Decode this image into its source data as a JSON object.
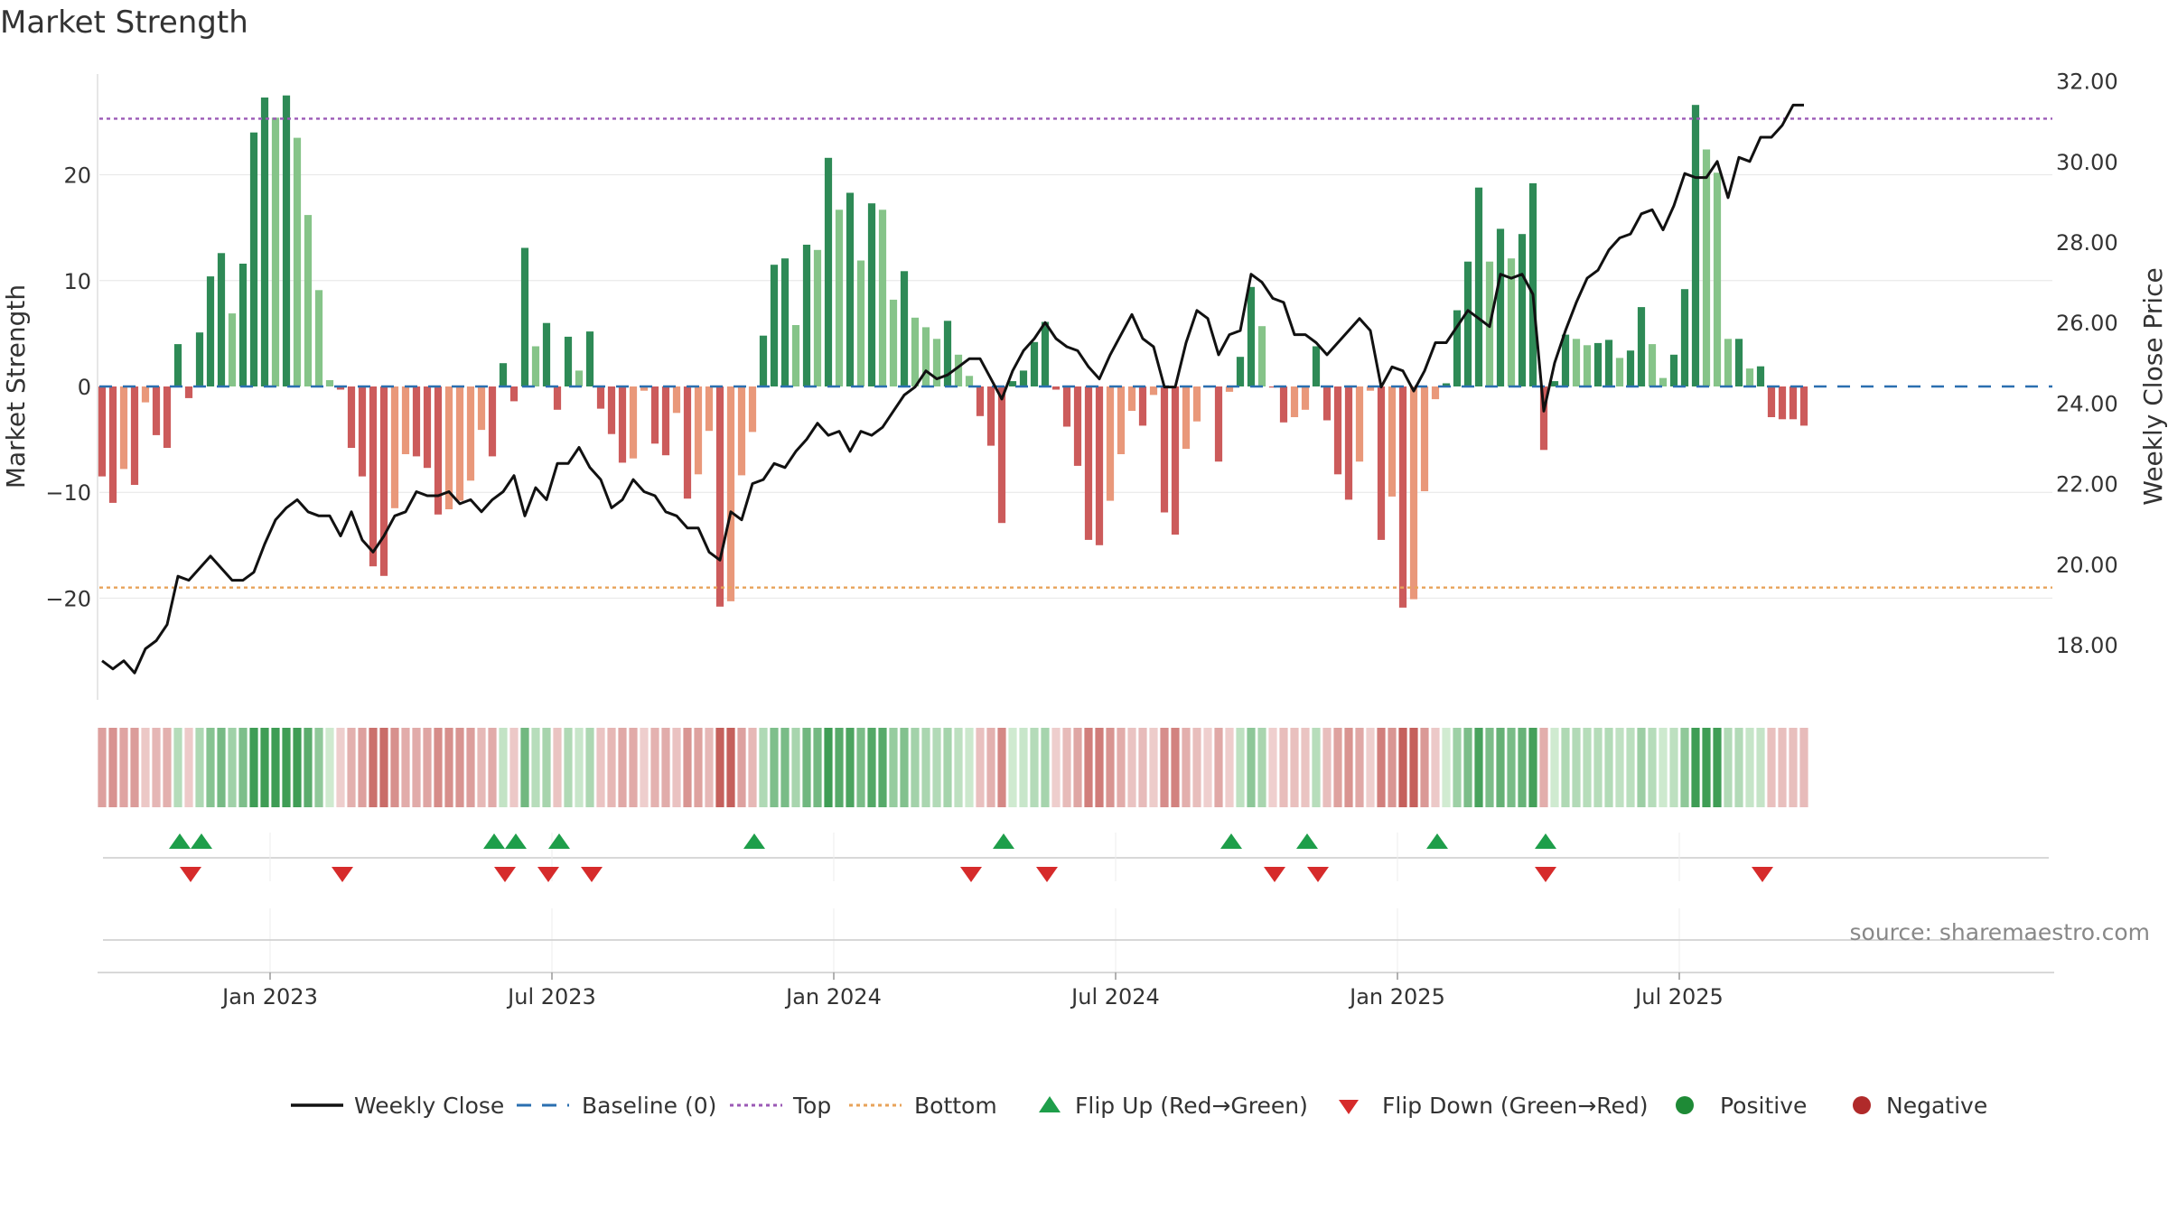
{
  "chart_data": {
    "type": "bar",
    "title": "Market Strength",
    "ylabel_left": "Market Strength",
    "ylabel_right": "Weekly Close Price",
    "ylim_left": [
      -29,
      30
    ],
    "ylim_right": [
      16.5,
      32.5
    ],
    "left_ticks": [
      {
        "value": 20,
        "label": "20"
      },
      {
        "value": 10,
        "label": "10"
      },
      {
        "value": 0,
        "label": "0"
      },
      {
        "value": -10,
        "label": "−10"
      },
      {
        "value": -20,
        "label": "−20"
      }
    ],
    "right_ticks": [
      "18.00",
      "20.00",
      "22.00",
      "24.00",
      "26.00",
      "28.00",
      "30.00",
      "32.00"
    ],
    "top_level": 25.3,
    "bottom_level": -19.0,
    "x_ticks": [
      {
        "index": 15,
        "label": "Jan 2023"
      },
      {
        "index": 41,
        "label": "Jul 2023"
      },
      {
        "index": 67,
        "label": "Jan 2024"
      },
      {
        "index": 93,
        "label": "Jul 2024"
      },
      {
        "index": 119,
        "label": "Jan 2025"
      },
      {
        "index": 145,
        "label": "Jul 2025"
      }
    ],
    "strength": [
      -8.5,
      -11,
      -7.8,
      -9.3,
      -1.5,
      -4.6,
      -5.8,
      4,
      -1.1,
      5.1,
      10.4,
      12.6,
      6.9,
      11.6,
      24,
      27.3,
      25.4,
      27.5,
      23.5,
      16.2,
      9.1,
      0.6,
      -0.3,
      -5.8,
      -8.5,
      -17,
      -17.9,
      -11.5,
      -6.4,
      -6.6,
      -7.7,
      -12.1,
      -11.6,
      -10.8,
      -8.9,
      -4.1,
      -6.6,
      2.2,
      -1.4,
      13.1,
      3.8,
      6,
      -2.2,
      4.7,
      1.5,
      5.2,
      -2.1,
      -4.5,
      -7.2,
      -6.8,
      -0.4,
      -5.4,
      -6.5,
      -2.5,
      -10.6,
      -8.3,
      -4.2,
      -20.8,
      -20.3,
      -8.4,
      -4.3,
      4.8,
      11.5,
      12.1,
      5.8,
      13.4,
      12.9,
      21.6,
      16.7,
      18.3,
      11.9,
      17.3,
      16.7,
      8.2,
      10.9,
      6.5,
      5.6,
      4.5,
      6.2,
      3,
      1,
      -2.8,
      -5.6,
      -12.9,
      0.5,
      1.5,
      4.2,
      6.1,
      -0.3,
      -3.8,
      -7.5,
      -14.5,
      -15,
      -10.8,
      -6.4,
      -2.3,
      -3.7,
      -0.8,
      -11.9,
      -14,
      -5.9,
      -3.3,
      -0.1,
      -7.1,
      -0.5,
      2.8,
      9.4,
      5.7,
      -0.1,
      -3.4,
      -2.9,
      -2.2,
      3.8,
      -3.2,
      -8.3,
      -10.7,
      -7.1,
      -0.4,
      -14.5,
      -10.4,
      -20.9,
      -20.1,
      -9.9,
      -1.2,
      0.3,
      7.2,
      11.8,
      18.8,
      11.8,
      14.9,
      12.1,
      14.4,
      19.2,
      -6,
      0.5,
      4.9,
      4.5,
      3.9,
      4.1,
      4.4,
      2.7,
      3.4,
      7.5,
      4,
      0.8,
      3,
      9.2,
      26.6,
      22.4,
      20.2,
      4.5,
      4.5,
      1.7,
      1.9,
      -2.9,
      -3.1,
      -3.1,
      -3.7
    ],
    "weekly_close": [
      17.6,
      17.4,
      17.6,
      17.3,
      17.9,
      18.1,
      18.5,
      19.7,
      19.6,
      19.9,
      20.2,
      19.9,
      19.6,
      19.6,
      19.8,
      20.5,
      21.1,
      21.4,
      21.6,
      21.3,
      21.2,
      21.2,
      20.7,
      21.3,
      20.6,
      20.3,
      20.7,
      21.2,
      21.3,
      21.8,
      21.7,
      21.7,
      21.8,
      21.5,
      21.6,
      21.3,
      21.6,
      21.8,
      22.2,
      21.2,
      21.9,
      21.6,
      22.5,
      22.5,
      22.9,
      22.4,
      22.1,
      21.4,
      21.6,
      22.1,
      21.8,
      21.7,
      21.3,
      21.2,
      20.9,
      20.9,
      20.3,
      20.1,
      21.3,
      21.1,
      22,
      22.1,
      22.5,
      22.4,
      22.8,
      23.1,
      23.5,
      23.2,
      23.3,
      22.8,
      23.3,
      23.2,
      23.4,
      23.8,
      24.2,
      24.4,
      24.8,
      24.6,
      24.7,
      24.9,
      25.1,
      25.1,
      24.6,
      24.1,
      24.8,
      25.3,
      25.6,
      26,
      25.6,
      25.4,
      25.3,
      24.9,
      24.6,
      25.2,
      25.7,
      26.2,
      25.6,
      25.4,
      24.4,
      24.4,
      25.5,
      26.3,
      26.1,
      25.2,
      25.7,
      25.8,
      27.2,
      27,
      26.6,
      26.5,
      25.7,
      25.7,
      25.5,
      25.2,
      25.5,
      25.8,
      26.1,
      25.8,
      24.4,
      24.9,
      24.8,
      24.3,
      24.8,
      25.5,
      25.5,
      25.9,
      26.3,
      26.1,
      25.9,
      27.2,
      27.1,
      27.2,
      26.7,
      23.8,
      25,
      25.8,
      26.5,
      27.1,
      27.3,
      27.8,
      28.1,
      28.2,
      28.7,
      28.8,
      28.3,
      28.9,
      29.7,
      29.6,
      29.6,
      30,
      29.1,
      30.1,
      30.0,
      30.6,
      30.6,
      30.9,
      31.4,
      31.4
    ],
    "flip_up_indices": [
      7,
      9,
      36,
      38,
      42,
      60,
      83,
      104,
      111,
      123,
      133
    ],
    "flip_down_indices": [
      8,
      22,
      37,
      41,
      45,
      80,
      87,
      108,
      112,
      133,
      153
    ],
    "strip_note": "regime strip colored by strength sign and magnitude",
    "source": "source: sharemaestro.com",
    "legend": [
      {
        "label": "Weekly Close",
        "kind": "line-solid",
        "color": "#111111"
      },
      {
        "label": "Baseline (0)",
        "kind": "line-dashed",
        "color": "#2a6fb0"
      },
      {
        "label": "Top",
        "kind": "line-dotted",
        "color": "#9b59b6"
      },
      {
        "label": "Bottom",
        "kind": "line-dotted",
        "color": "#e8a35a"
      },
      {
        "label": "Flip Up (Red→Green)",
        "kind": "triangle-up",
        "color": "#1e9e4a"
      },
      {
        "label": "Flip Down (Green→Red)",
        "kind": "triangle-down",
        "color": "#d62b2b"
      },
      {
        "label": "Positive",
        "kind": "dot",
        "color": "#1e8a36"
      },
      {
        "label": "Negative",
        "kind": "dot",
        "color": "#b02a2a"
      }
    ],
    "colors": {
      "pos_dark": "#2e8a56",
      "pos_light": "#86c489",
      "neg_dark": "#cc5b5b",
      "neg_light": "#e9987a",
      "grid": "#e6e6e6",
      "axis": "#cccccc"
    }
  }
}
